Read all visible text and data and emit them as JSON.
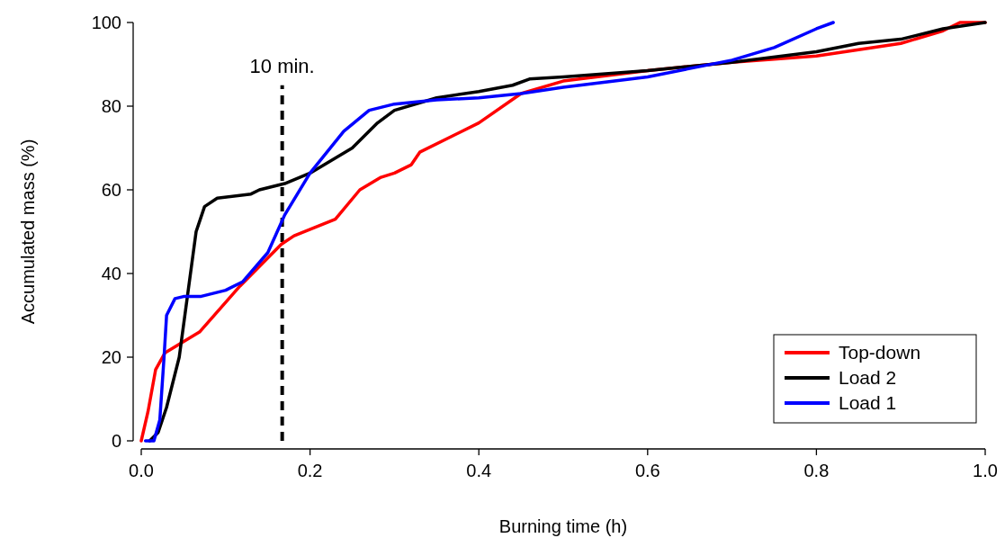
{
  "chart_data": {
    "type": "line",
    "xlabel": "Burning time (h)",
    "ylabel": "Accumulated mass (%)",
    "xlim": [
      0,
      1
    ],
    "ylim": [
      0,
      100
    ],
    "xticks": [
      {
        "value": 0,
        "label": "0.0"
      },
      {
        "value": 0.2,
        "label": "0.2"
      },
      {
        "value": 0.4,
        "label": "0.4"
      },
      {
        "value": 0.6,
        "label": "0.6"
      },
      {
        "value": 0.8,
        "label": "0.8"
      },
      {
        "value": 1,
        "label": "1.0"
      }
    ],
    "yticks": [
      0,
      20,
      40,
      60,
      80,
      100
    ],
    "grid": false,
    "legend": "bottom right",
    "marker": "none",
    "line_style": "solid",
    "ref_lines": [
      {
        "axis": "x",
        "value": 0.167,
        "label": "10 min.",
        "color": "#000000",
        "line_style": "dashed"
      }
    ],
    "series": [
      {
        "name": "Top-down",
        "color": "#ff0000",
        "x": [
          0,
          0.008,
          0.017,
          0.028,
          0.069,
          0.117,
          0.166,
          0.181,
          0.23,
          0.259,
          0.284,
          0.3,
          0.32,
          0.33,
          0.4,
          0.45,
          0.5,
          0.6,
          0.7,
          0.8,
          0.9,
          0.95,
          0.97,
          1.0
        ],
        "values": [
          0,
          7,
          17,
          21,
          26,
          37,
          47,
          49,
          53,
          60,
          63,
          64,
          66,
          69,
          76,
          83,
          86,
          88.5,
          90.5,
          92,
          95,
          98,
          100,
          100
        ]
      },
      {
        "name": "Load 2",
        "color": "#000000",
        "x": [
          0.01,
          0.02,
          0.03,
          0.045,
          0.055,
          0.065,
          0.075,
          0.09,
          0.13,
          0.14,
          0.17,
          0.2,
          0.25,
          0.28,
          0.3,
          0.35,
          0.4,
          0.44,
          0.46,
          0.5,
          0.6,
          0.7,
          0.8,
          0.85,
          0.9,
          0.95,
          1.0
        ],
        "values": [
          0,
          2,
          8,
          20,
          35,
          50,
          56,
          58,
          59,
          60,
          61.5,
          64,
          70,
          76,
          79,
          82,
          83.5,
          85,
          86.5,
          87,
          88.5,
          90.5,
          93,
          95,
          96,
          98.5,
          100
        ]
      },
      {
        "name": "Load 1",
        "color": "#0000ff",
        "x": [
          0.005,
          0.015,
          0.022,
          0.027,
          0.03,
          0.04,
          0.05,
          0.07,
          0.1,
          0.12,
          0.15,
          0.17,
          0.2,
          0.24,
          0.27,
          0.3,
          0.35,
          0.4,
          0.45,
          0.5,
          0.6,
          0.7,
          0.75,
          0.8,
          0.82
        ],
        "values": [
          0,
          0,
          5,
          20,
          30,
          34,
          34.5,
          34.5,
          36,
          38,
          45,
          54,
          64,
          74,
          79,
          80.5,
          81.5,
          82,
          83,
          84.5,
          87,
          91,
          94,
          98.5,
          100
        ]
      }
    ]
  }
}
